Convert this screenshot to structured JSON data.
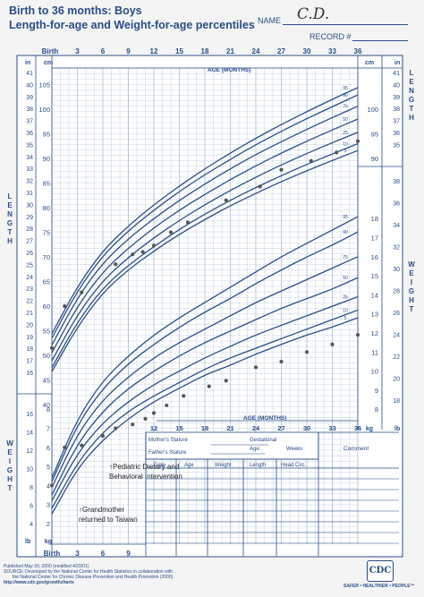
{
  "header": {
    "title_line1": "Birth to 36 months: Boys",
    "title_line2": "Length-for-age and Weight-for-age percentiles",
    "name_label": "NAME",
    "name_value": "C.D.",
    "record_label": "RECORD #"
  },
  "chart_data": {
    "type": "scatter",
    "title": "Length-for-age and Weight-for-age percentiles",
    "x_axis": {
      "label": "AGE (MONTHS)",
      "range": [
        0,
        36
      ],
      "ticks_top": [
        "Birth",
        "3",
        "6",
        "9",
        "12",
        "15",
        "18",
        "21",
        "24",
        "27",
        "30",
        "33",
        "36"
      ],
      "ticks_bottom": [
        "Birth",
        "3",
        "6",
        "9",
        "12",
        "15",
        "18",
        "21",
        "24",
        "27",
        "30",
        "33",
        "36"
      ]
    },
    "length_axis": {
      "label": "LENGTH",
      "unit_cm": "cm",
      "unit_in": "in",
      "range_cm": [
        40,
        105
      ],
      "cm_ticks": [
        "105",
        "100",
        "95",
        "90",
        "85",
        "80",
        "75",
        "70",
        "65",
        "60",
        "55",
        "50",
        "45",
        "40"
      ],
      "in_ticks": [
        "41",
        "40",
        "39",
        "38",
        "37",
        "36",
        "35",
        "34",
        "33",
        "32",
        "31",
        "30",
        "29",
        "28",
        "27",
        "26",
        "25",
        "24",
        "23",
        "22",
        "21",
        "20",
        "19",
        "18",
        "17",
        "16"
      ],
      "right_cm_ticks": [
        "100",
        "95",
        "90"
      ],
      "right_in_ticks": [
        "41",
        "40",
        "39",
        "38",
        "37",
        "36",
        "35"
      ]
    },
    "weight_axis": {
      "label": "WEIGHT",
      "unit_kg": "kg",
      "unit_lb": "lb",
      "range_kg": [
        1,
        18
      ],
      "right_kg_ticks": [
        "18",
        "17",
        "16",
        "15",
        "14",
        "13",
        "12",
        "11",
        "10",
        "9",
        "8"
      ],
      "right_lb_ticks": [
        "38",
        "36",
        "34",
        "32",
        "30",
        "28",
        "26",
        "24",
        "22",
        "20",
        "18"
      ],
      "left_kg_ticks": [
        "8",
        "7",
        "6",
        "5",
        "4",
        "3",
        "2"
      ],
      "left_lb_ticks": [
        "16",
        "14",
        "12",
        "10",
        "8",
        "6",
        "4"
      ]
    },
    "percentile_labels": [
      "95",
      "90",
      "75",
      "50",
      "25",
      "10",
      "5"
    ],
    "length_percentiles": [
      {
        "name": "5",
        "values": [
          46.7,
          55.8,
          62.8,
          67.4,
          71.2,
          74.6,
          77.6,
          80.4,
          82.9,
          85.3,
          87.5,
          89.6,
          91.6
        ]
      },
      {
        "name": "10",
        "values": [
          47.5,
          56.8,
          63.7,
          68.3,
          72.1,
          75.6,
          78.7,
          81.5,
          84.1,
          86.5,
          88.8,
          90.9,
          93.0
        ]
      },
      {
        "name": "25",
        "values": [
          48.9,
          58.3,
          65.2,
          69.9,
          73.9,
          77.4,
          80.6,
          83.5,
          86.2,
          88.7,
          91.0,
          93.2,
          95.3
        ]
      },
      {
        "name": "50",
        "values": [
          50.5,
          60.0,
          67.0,
          71.8,
          75.9,
          79.5,
          82.7,
          85.7,
          88.5,
          91.1,
          93.5,
          95.8,
          98.0
        ]
      },
      {
        "name": "75",
        "values": [
          52.1,
          61.7,
          68.8,
          73.7,
          77.8,
          81.5,
          84.8,
          87.9,
          90.8,
          93.4,
          95.9,
          98.3,
          100.6
        ]
      },
      {
        "name": "90",
        "values": [
          53.5,
          63.1,
          70.3,
          75.3,
          79.5,
          83.3,
          86.7,
          89.8,
          92.8,
          95.5,
          98.1,
          100.5,
          102.9
        ]
      },
      {
        "name": "95",
        "values": [
          54.4,
          64.0,
          71.3,
          76.3,
          80.6,
          84.4,
          87.9,
          91.1,
          94.1,
          96.9,
          99.5,
          102.0,
          104.4
        ]
      }
    ],
    "weight_percentiles": [
      {
        "name": "5",
        "values": [
          2.5,
          4.9,
          6.4,
          7.5,
          8.4,
          9.1,
          9.8,
          10.3,
          10.9,
          11.4,
          11.9,
          12.3,
          12.8
        ]
      },
      {
        "name": "10",
        "values": [
          2.8,
          5.2,
          6.8,
          7.9,
          8.7,
          9.4,
          10.1,
          10.7,
          11.2,
          11.7,
          12.2,
          12.7,
          13.2
        ]
      },
      {
        "name": "25",
        "values": [
          3.2,
          5.7,
          7.3,
          8.4,
          9.3,
          10.0,
          10.7,
          11.3,
          11.9,
          12.4,
          12.9,
          13.4,
          13.9
        ]
      },
      {
        "name": "50",
        "values": [
          3.5,
          6.2,
          7.9,
          9.1,
          10.0,
          10.8,
          11.5,
          12.1,
          12.7,
          13.3,
          13.8,
          14.3,
          14.9
        ]
      },
      {
        "name": "75",
        "values": [
          3.9,
          6.7,
          8.5,
          9.7,
          10.7,
          11.5,
          12.2,
          12.9,
          13.6,
          14.2,
          14.8,
          15.4,
          16.0
        ]
      },
      {
        "name": "90",
        "values": [
          4.2,
          7.2,
          9.1,
          10.4,
          11.4,
          12.3,
          13.1,
          13.8,
          14.6,
          15.3,
          16.0,
          16.6,
          17.3
        ]
      },
      {
        "name": "95",
        "values": [
          4.4,
          7.5,
          9.5,
          10.8,
          11.9,
          12.8,
          13.6,
          14.4,
          15.2,
          16.0,
          16.7,
          17.4,
          18.1
        ]
      }
    ],
    "length_measurements": [
      {
        "age": 0,
        "value": 51.5
      },
      {
        "age": 1.5,
        "value": 60.0
      },
      {
        "age": 3.5,
        "value": 62.8
      },
      {
        "age": 7.5,
        "value": 68.5
      },
      {
        "age": 9.5,
        "value": 70.5
      },
      {
        "age": 10.7,
        "value": 71.0
      },
      {
        "age": 12.0,
        "value": 72.3
      },
      {
        "age": 14.0,
        "value": 75.0
      },
      {
        "age": 16.0,
        "value": 77.0
      },
      {
        "age": 20.5,
        "value": 81.5
      },
      {
        "age": 24.5,
        "value": 84.3
      },
      {
        "age": 27.0,
        "value": 87.7
      },
      {
        "age": 30.5,
        "value": 89.5
      },
      {
        "age": 33.5,
        "value": 91.2
      },
      {
        "age": 36.0,
        "value": 93.5
      }
    ],
    "weight_measurements": [
      {
        "age": 0,
        "value": 4.0
      },
      {
        "age": 1.5,
        "value": 6.0
      },
      {
        "age": 3.5,
        "value": 6.1
      },
      {
        "age": 6.0,
        "value": 6.6
      },
      {
        "age": 7.5,
        "value": 7.0
      },
      {
        "age": 9.5,
        "value": 7.2
      },
      {
        "age": 11.0,
        "value": 7.5
      },
      {
        "age": 12.0,
        "value": 7.8
      },
      {
        "age": 13.5,
        "value": 8.2
      },
      {
        "age": 15.5,
        "value": 8.7
      },
      {
        "age": 18.5,
        "value": 9.2
      },
      {
        "age": 20.5,
        "value": 9.5
      },
      {
        "age": 24.0,
        "value": 10.2
      },
      {
        "age": 27.0,
        "value": 10.5
      },
      {
        "age": 30.0,
        "value": 11.0
      },
      {
        "age": 33.0,
        "value": 11.4
      },
      {
        "age": 36.0,
        "value": 11.9
      }
    ],
    "annotations": [
      {
        "age": 6,
        "lines": [
          "↑Pediatric Dietary and",
          "Behavioral Intervention"
        ]
      },
      {
        "age": 1,
        "lines": [
          "↑Grandmother",
          "returned to Taiwan"
        ]
      }
    ]
  },
  "table": {
    "mothers_stature": "Mother's Stature",
    "fathers_stature": "Father's Stature",
    "gestational_age_line1": "Gestational",
    "gestational_age_line2": "Age:",
    "weeks": "Weeks",
    "comment": "Comment",
    "columns": [
      "Date",
      "Age",
      "Weight",
      "Length",
      "Head Circ."
    ]
  },
  "footer": {
    "line1": "Published May 30, 2000 (modified 4/20/01).",
    "line2": "SOURCE: Developed by the National Center for Health Statistics in collaboration with",
    "line3": "the National Center for Chronic Disease Prevention and Health Promotion (2000).",
    "line4": "http://www.cdc.gov/growthcharts",
    "logo": "CDC",
    "tagline": "SAFER • HEALTHIER • PEOPLE™"
  },
  "colors": {
    "ink": "#2a4d86",
    "grid": "#9fb3d1",
    "plot": "#555555",
    "background": "#f4f4f4"
  }
}
